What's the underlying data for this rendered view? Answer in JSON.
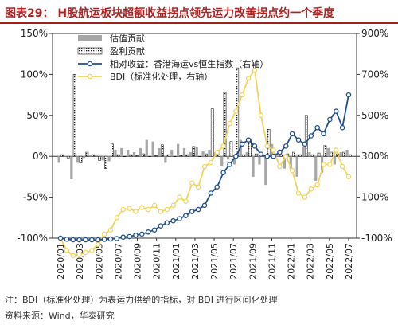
{
  "title": "图表29： H股航运板块超额收益拐点领先运力改善拐点约一个季度",
  "footnote": "注：BDI（标准化处理）为表运力供给的指标，对 BDI 进行区间化处理",
  "source": "资料来源：Wind，华泰研究",
  "chart_data": {
    "type": "bar+line",
    "left_axis": {
      "min": -100,
      "max": 150,
      "ticks": [
        "-100%",
        "-50%",
        "0%",
        "50%",
        "100%",
        "150%"
      ]
    },
    "right_axis": {
      "min": -100,
      "max": 900,
      "ticks": [
        "-100%",
        "100%",
        "300%",
        "500%",
        "700%",
        "900%"
      ]
    },
    "x_labels": [
      "2020/01",
      "2020/03",
      "2020/05",
      "2020/07",
      "2020/09",
      "2020/11",
      "2021/01",
      "2021/03",
      "2021/05",
      "2021/07",
      "2021/09",
      "2021/11",
      "2022/01",
      "2022/03",
      "2022/05",
      "2022/07"
    ],
    "legend": {
      "valuation": "估值贡献",
      "earnings": "盈利贡献",
      "relative": "相对收益：香港海运vs恒生指数（右轴）",
      "bdi": "BDI（标准化处理，右轴）"
    },
    "colors": {
      "valuation": "#a6a6a6",
      "relative": "#1f4e8c",
      "bdi": "#f2d35b"
    },
    "valuation_contribution": [
      -8,
      0,
      -28,
      -8,
      -2,
      2,
      2,
      -5,
      -6,
      8,
      10,
      8,
      5,
      10,
      20,
      18,
      10,
      -8,
      8,
      15,
      10,
      5,
      12,
      6,
      8,
      5,
      -12,
      -3,
      -10,
      20,
      5,
      -25,
      -10,
      -35,
      15,
      0,
      -15,
      -15,
      -25,
      12,
      5,
      -30,
      -20,
      10,
      -10,
      5,
      8
    ],
    "earnings_contribution": [
      2,
      -2,
      100,
      -8,
      5,
      2,
      -5,
      -15,
      15,
      2,
      0,
      2,
      1,
      3,
      0,
      1,
      14,
      2,
      0,
      1,
      2,
      12,
      0,
      3,
      58,
      3,
      78,
      18,
      108,
      2,
      20,
      3,
      2,
      33,
      3,
      2,
      3,
      5,
      2,
      50,
      2,
      4,
      13,
      5,
      3,
      5,
      2
    ],
    "relative_return": [
      -100,
      -105,
      -108,
      -108,
      -108,
      -108,
      -108,
      -106,
      -104,
      -102,
      -95,
      -92,
      -85,
      -80,
      -70,
      -60,
      -40,
      -25,
      -15,
      -5,
      10,
      30,
      40,
      60,
      120,
      150,
      220,
      260,
      300,
      360,
      380,
      350,
      310,
      300,
      300,
      320,
      350,
      410,
      380,
      360,
      400,
      440,
      410,
      480,
      520,
      440,
      600
    ],
    "bdi": [
      -100,
      -160,
      -185,
      -180,
      -170,
      -160,
      -130,
      -80,
      -60,
      0,
      40,
      45,
      30,
      50,
      40,
      60,
      30,
      40,
      60,
      100,
      80,
      170,
      150,
      250,
      270,
      320,
      350,
      460,
      520,
      600,
      680,
      720,
      500,
      350,
      330,
      250,
      300,
      230,
      120,
      100,
      140,
      160,
      260,
      260,
      330,
      250,
      200
    ]
  }
}
